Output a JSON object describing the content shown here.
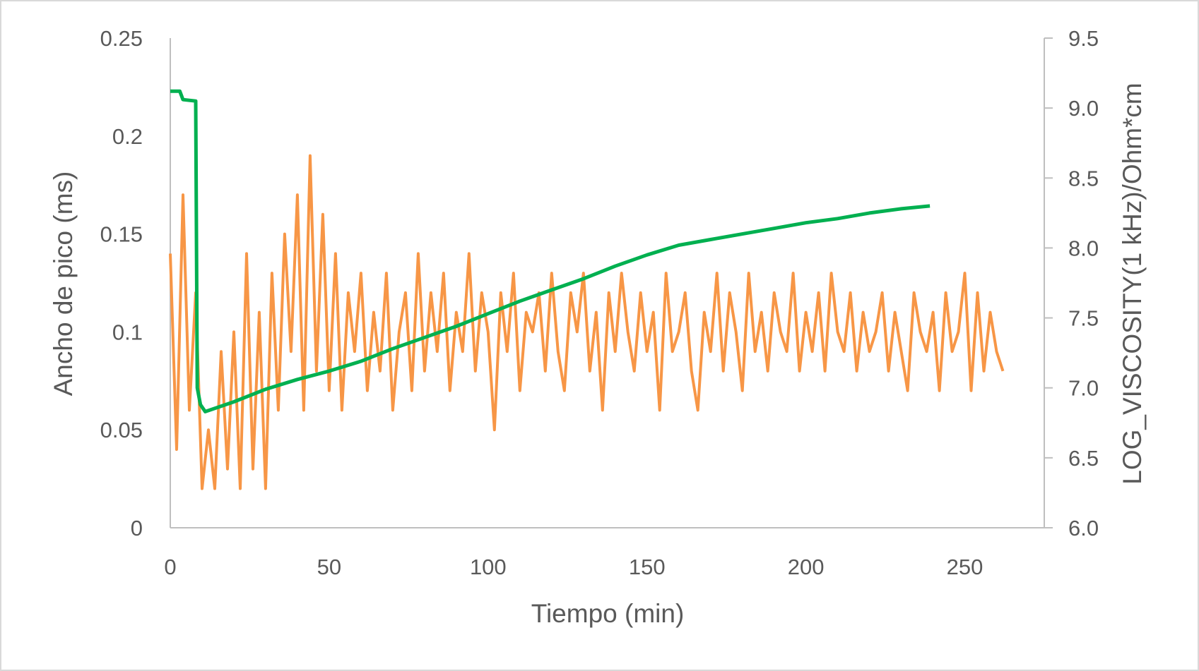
{
  "chart_data": {
    "type": "line",
    "title": "",
    "xlabel": "Tiempo (min)",
    "ylabel": "Ancho de pico (ms)",
    "y2label": "LOG_VISCOSITY(1 kHz)/Ohm*cm",
    "xlim": [
      0,
      275
    ],
    "ylim": [
      0,
      0.25
    ],
    "y2lim": [
      6.0,
      9.5
    ],
    "x_ticks": [
      "0",
      "50",
      "100",
      "150",
      "200",
      "250"
    ],
    "y_ticks": [
      "0",
      "0.05",
      "0.1",
      "0.15",
      "0.2",
      "0.25"
    ],
    "y2_ticks": [
      "6.0",
      "6.5",
      "7.0",
      "7.5",
      "8.0",
      "8.5",
      "9.0",
      "9.5"
    ],
    "grid": false,
    "series": [
      {
        "name": "Ancho de pico",
        "axis": "left",
        "color": "#F79646",
        "x_start": 0,
        "x_step": 2,
        "values": [
          0.14,
          0.04,
          0.17,
          0.06,
          0.12,
          0.02,
          0.05,
          0.02,
          0.09,
          0.03,
          0.1,
          0.02,
          0.14,
          0.03,
          0.11,
          0.02,
          0.13,
          0.06,
          0.15,
          0.09,
          0.17,
          0.06,
          0.19,
          0.08,
          0.16,
          0.07,
          0.14,
          0.06,
          0.12,
          0.09,
          0.13,
          0.07,
          0.11,
          0.08,
          0.13,
          0.06,
          0.1,
          0.12,
          0.07,
          0.14,
          0.08,
          0.12,
          0.09,
          0.13,
          0.07,
          0.11,
          0.09,
          0.14,
          0.08,
          0.12,
          0.1,
          0.05,
          0.12,
          0.09,
          0.13,
          0.07,
          0.11,
          0.1,
          0.12,
          0.08,
          0.13,
          0.09,
          0.07,
          0.12,
          0.1,
          0.13,
          0.08,
          0.11,
          0.06,
          0.12,
          0.09,
          0.13,
          0.1,
          0.08,
          0.12,
          0.09,
          0.11,
          0.06,
          0.13,
          0.09,
          0.1,
          0.12,
          0.08,
          0.06,
          0.11,
          0.09,
          0.13,
          0.08,
          0.12,
          0.1,
          0.07,
          0.13,
          0.09,
          0.11,
          0.08,
          0.12,
          0.1,
          0.09,
          0.13,
          0.08,
          0.11,
          0.09,
          0.12,
          0.08,
          0.13,
          0.1,
          0.09,
          0.12,
          0.08,
          0.11,
          0.09,
          0.1,
          0.12,
          0.08,
          0.11,
          0.09,
          0.07,
          0.12,
          0.1,
          0.09,
          0.11,
          0.07,
          0.12,
          0.09,
          0.1,
          0.13,
          0.07,
          0.12,
          0.08,
          0.11,
          0.09,
          0.08
        ]
      },
      {
        "name": "LOG_VISCOSITY",
        "axis": "right",
        "color": "#00B050",
        "points": [
          [
            0,
            9.12
          ],
          [
            3,
            9.12
          ],
          [
            4,
            9.06
          ],
          [
            8,
            9.05
          ],
          [
            8.5,
            7.0
          ],
          [
            9.5,
            6.88
          ],
          [
            11,
            6.83
          ],
          [
            20,
            6.9
          ],
          [
            30,
            6.99
          ],
          [
            40,
            7.06
          ],
          [
            50,
            7.12
          ],
          [
            60,
            7.19
          ],
          [
            70,
            7.28
          ],
          [
            80,
            7.36
          ],
          [
            90,
            7.44
          ],
          [
            100,
            7.53
          ],
          [
            110,
            7.62
          ],
          [
            120,
            7.7
          ],
          [
            130,
            7.78
          ],
          [
            140,
            7.87
          ],
          [
            150,
            7.95
          ],
          [
            160,
            8.02
          ],
          [
            170,
            8.06
          ],
          [
            180,
            8.1
          ],
          [
            190,
            8.14
          ],
          [
            200,
            8.18
          ],
          [
            210,
            8.21
          ],
          [
            220,
            8.25
          ],
          [
            230,
            8.28
          ],
          [
            239,
            8.3
          ]
        ]
      }
    ]
  }
}
